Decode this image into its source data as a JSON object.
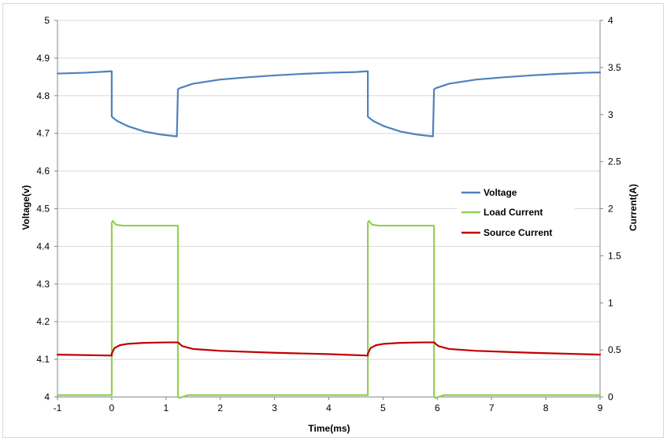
{
  "chart_data": {
    "type": "line",
    "title": "",
    "xlabel": "Time(ms)",
    "ylabel": "Voltage(v)",
    "y2label": "Current(A)",
    "xlim": [
      -1,
      9
    ],
    "ylim": [
      4,
      5
    ],
    "y2lim": [
      0,
      4
    ],
    "x_ticks": [
      "-1",
      "0",
      "1",
      "2",
      "3",
      "4",
      "5",
      "6",
      "7",
      "8",
      "9"
    ],
    "y_ticks": [
      "4",
      "4.1",
      "4.2",
      "4.3",
      "4.4",
      "4.5",
      "4.6",
      "4.7",
      "4.8",
      "4.9",
      "5"
    ],
    "y2_ticks": [
      "0",
      "0.5",
      "1",
      "1.5",
      "2",
      "2.5",
      "3",
      "3.5",
      "4"
    ],
    "grid": true,
    "legend_position": "right, middle",
    "series": [
      {
        "name": "Voltage",
        "axis": "left",
        "color": "#4f81bd",
        "x": [
          -1,
          -0.5,
          0,
          0.0,
          0.02,
          0.1,
          0.3,
          0.6,
          0.9,
          1.2,
          1.22,
          1.25,
          1.5,
          2.0,
          2.5,
          3.0,
          3.5,
          4.0,
          4.5,
          4.72,
          4.72,
          4.74,
          4.82,
          5.02,
          5.32,
          5.62,
          5.92,
          5.94,
          5.97,
          6.22,
          6.72,
          7.22,
          7.72,
          8.22,
          8.72,
          9.0
        ],
        "y": [
          4.859,
          4.861,
          4.865,
          4.745,
          4.742,
          4.733,
          4.719,
          4.705,
          4.697,
          4.692,
          4.817,
          4.82,
          4.832,
          4.843,
          4.849,
          4.854,
          4.858,
          4.861,
          4.863,
          4.865,
          4.745,
          4.742,
          4.733,
          4.719,
          4.705,
          4.697,
          4.692,
          4.817,
          4.82,
          4.832,
          4.843,
          4.849,
          4.854,
          4.858,
          4.861,
          4.862
        ]
      },
      {
        "name": "Load Current",
        "axis": "right",
        "color": "#92d050",
        "x": [
          -1,
          0,
          0,
          0.02,
          0.08,
          0.2,
          1.22,
          1.22,
          1.25,
          1.4,
          4.72,
          4.72,
          4.74,
          4.8,
          4.92,
          5.94,
          5.94,
          5.97,
          6.12,
          9.0
        ],
        "y": [
          0.02,
          0.02,
          1.85,
          1.87,
          1.83,
          1.82,
          1.82,
          0.0,
          -0.01,
          0.02,
          0.02,
          1.85,
          1.87,
          1.83,
          1.82,
          1.82,
          0.0,
          -0.01,
          0.02,
          0.02
        ]
      },
      {
        "name": "Source Current",
        "axis": "right",
        "color": "#c00000",
        "x": [
          -1,
          0,
          0.0,
          0.05,
          0.15,
          0.3,
          0.6,
          1.0,
          1.22,
          1.3,
          1.5,
          2.0,
          3.0,
          4.0,
          4.72,
          4.72,
          4.77,
          4.87,
          5.02,
          5.32,
          5.72,
          5.94,
          6.02,
          6.22,
          6.72,
          7.72,
          9.0
        ],
        "y": [
          0.45,
          0.44,
          0.46,
          0.52,
          0.55,
          0.565,
          0.575,
          0.58,
          0.58,
          0.54,
          0.51,
          0.49,
          0.47,
          0.455,
          0.44,
          0.46,
          0.52,
          0.55,
          0.565,
          0.575,
          0.58,
          0.58,
          0.54,
          0.51,
          0.49,
          0.47,
          0.45
        ]
      }
    ]
  }
}
